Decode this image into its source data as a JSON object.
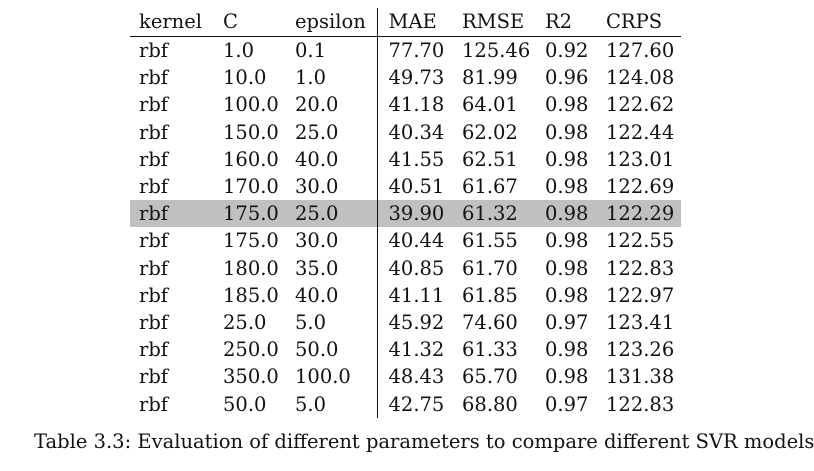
{
  "table": {
    "headers": [
      "kernel",
      "C",
      "epsilon",
      "MAE",
      "RMSE",
      "R2",
      "CRPS"
    ],
    "rows": [
      [
        "rbf",
        "1.0",
        "0.1",
        "77.70",
        "125.46",
        "0.92",
        "127.60"
      ],
      [
        "rbf",
        "10.0",
        "1.0",
        "49.73",
        "81.99",
        "0.96",
        "124.08"
      ],
      [
        "rbf",
        "100.0",
        "20.0",
        "41.18",
        "64.01",
        "0.98",
        "122.62"
      ],
      [
        "rbf",
        "150.0",
        "25.0",
        "40.34",
        "62.02",
        "0.98",
        "122.44"
      ],
      [
        "rbf",
        "160.0",
        "40.0",
        "41.55",
        "62.51",
        "0.98",
        "123.01"
      ],
      [
        "rbf",
        "170.0",
        "30.0",
        "40.51",
        "61.67",
        "0.98",
        "122.69"
      ],
      [
        "rbf",
        "175.0",
        "25.0",
        "39.90",
        "61.32",
        "0.98",
        "122.29"
      ],
      [
        "rbf",
        "175.0",
        "30.0",
        "40.44",
        "61.55",
        "0.98",
        "122.55"
      ],
      [
        "rbf",
        "180.0",
        "35.0",
        "40.85",
        "61.70",
        "0.98",
        "122.83"
      ],
      [
        "rbf",
        "185.0",
        "40.0",
        "41.11",
        "61.85",
        "0.98",
        "122.97"
      ],
      [
        "rbf",
        "25.0",
        "5.0",
        "45.92",
        "74.60",
        "0.97",
        "123.41"
      ],
      [
        "rbf",
        "250.0",
        "50.0",
        "41.32",
        "61.33",
        "0.98",
        "123.26"
      ],
      [
        "rbf",
        "350.0",
        "100.0",
        "48.43",
        "65.70",
        "0.98",
        "131.38"
      ],
      [
        "rbf",
        "50.0",
        "5.0",
        "42.75",
        "68.80",
        "0.97",
        "122.83"
      ]
    ],
    "highlighted_row": 6,
    "highlight_color": "#c0c0c0"
  },
  "caption": "Table 3.3: Evaluation of different parameters to compare different SVR models"
}
